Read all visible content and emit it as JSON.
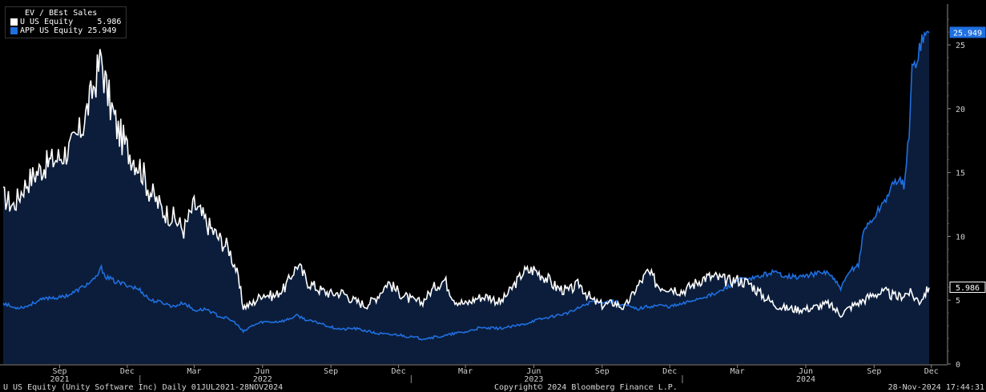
{
  "legend": {
    "title": "EV / BEst Sales",
    "items": [
      {
        "name": "U US Equity",
        "value": "5.986",
        "color": "#ffffff"
      },
      {
        "name": "APP US Equity",
        "value": "25.949",
        "color": "#1f6fe0"
      }
    ]
  },
  "footer": {
    "left": "U US Equity (Unity Software Inc)  Daily 01JUL2021-28NOV2024",
    "center": "Copyright© 2024 Bloomberg Finance L.P.",
    "right": "28-Nov-2024 17:44:31"
  },
  "colors": {
    "background": "#000000",
    "area_fill": "#0b1d3a",
    "u_line": "#ffffff",
    "app_line": "#1f6fe0",
    "axis": "#8a8a8a"
  },
  "chart_data": {
    "type": "line",
    "title": "EV / BEst Sales",
    "xlabel": "",
    "ylabel": "",
    "ylim": [
      0,
      28
    ],
    "yticks": [
      0,
      5,
      10,
      15,
      20,
      25
    ],
    "x_range": [
      "2021-07-01",
      "2024-11-28"
    ],
    "month_ticks": [
      {
        "label": "Sep",
        "date": "2021-09-15"
      },
      {
        "label": "Dec",
        "date": "2021-12-15"
      },
      {
        "label": "Mar",
        "date": "2022-03-15"
      },
      {
        "label": "Jun",
        "date": "2022-06-15"
      },
      {
        "label": "Sep",
        "date": "2022-09-15"
      },
      {
        "label": "Dec",
        "date": "2022-12-15"
      },
      {
        "label": "Mar",
        "date": "2023-03-15"
      },
      {
        "label": "Jun",
        "date": "2023-06-15"
      },
      {
        "label": "Sep",
        "date": "2023-09-15"
      },
      {
        "label": "Dec",
        "date": "2023-12-15"
      },
      {
        "label": "Mar",
        "date": "2024-03-15"
      },
      {
        "label": "Jun",
        "date": "2024-06-15"
      },
      {
        "label": "Sep",
        "date": "2024-09-15"
      },
      {
        "label": "Dec",
        "date": "2024-12-01"
      }
    ],
    "year_labels": [
      {
        "label": "2021",
        "date": "2021-09-15"
      },
      {
        "label": "2022",
        "date": "2022-06-15"
      },
      {
        "label": "2023",
        "date": "2023-06-15"
      },
      {
        "label": "2024",
        "date": "2024-06-15"
      }
    ],
    "year_dividers": [
      "2022-01-01",
      "2023-01-01",
      "2024-01-01"
    ],
    "last_value_labels": [
      {
        "series": "U US Equity",
        "value": "5.986",
        "y": 5.986
      },
      {
        "series": "APP US Equity",
        "value": "25.949",
        "y": 25.949
      }
    ],
    "series": [
      {
        "name": "U US Equity",
        "x": [
          "2021-07-01",
          "2021-07-15",
          "2021-08-01",
          "2021-08-15",
          "2021-09-01",
          "2021-09-15",
          "2021-10-01",
          "2021-10-15",
          "2021-11-01",
          "2021-11-10",
          "2021-11-17",
          "2021-12-01",
          "2021-12-15",
          "2022-01-01",
          "2022-01-15",
          "2022-02-01",
          "2022-02-15",
          "2022-03-01",
          "2022-03-15",
          "2022-04-01",
          "2022-04-15",
          "2022-05-01",
          "2022-05-10",
          "2022-05-20",
          "2022-06-01",
          "2022-06-15",
          "2022-07-01",
          "2022-07-15",
          "2022-08-01",
          "2022-08-15",
          "2022-09-01",
          "2022-09-15",
          "2022-10-01",
          "2022-10-15",
          "2022-11-01",
          "2022-11-15",
          "2022-12-01",
          "2022-12-15",
          "2023-01-01",
          "2023-01-15",
          "2023-02-01",
          "2023-02-15",
          "2023-03-01",
          "2023-03-15",
          "2023-04-01",
          "2023-04-15",
          "2023-05-01",
          "2023-05-15",
          "2023-06-01",
          "2023-06-15",
          "2023-07-01",
          "2023-07-15",
          "2023-08-01",
          "2023-08-15",
          "2023-09-01",
          "2023-09-15",
          "2023-10-01",
          "2023-10-15",
          "2023-11-01",
          "2023-11-15",
          "2023-12-01",
          "2023-12-15",
          "2024-01-01",
          "2024-01-15",
          "2024-02-01",
          "2024-02-15",
          "2024-03-01",
          "2024-03-15",
          "2024-04-01",
          "2024-04-15",
          "2024-05-01",
          "2024-05-15",
          "2024-06-01",
          "2024-06-15",
          "2024-07-01",
          "2024-07-15",
          "2024-08-01",
          "2024-08-15",
          "2024-09-01",
          "2024-09-15",
          "2024-10-01",
          "2024-10-15",
          "2024-11-01",
          "2024-11-15",
          "2024-11-28"
        ],
        "values": [
          13.1,
          12.4,
          14.2,
          15.0,
          15.8,
          16.2,
          17.0,
          18.5,
          22.0,
          24.0,
          21.5,
          18.5,
          16.8,
          15.5,
          13.5,
          12.0,
          11.5,
          10.5,
          12.5,
          11.0,
          10.0,
          9.0,
          7.5,
          4.5,
          4.7,
          5.5,
          5.3,
          6.0,
          7.8,
          6.4,
          5.8,
          5.5,
          5.6,
          5.0,
          4.6,
          5.2,
          6.4,
          5.6,
          5.0,
          4.8,
          6.0,
          6.6,
          5.0,
          4.7,
          5.2,
          5.3,
          4.8,
          5.8,
          7.2,
          7.4,
          6.8,
          6.0,
          5.7,
          6.3,
          5.0,
          4.6,
          4.8,
          4.4,
          6.0,
          7.2,
          6.1,
          6.0,
          5.7,
          6.2,
          6.8,
          6.8,
          6.5,
          6.6,
          6.3,
          5.5,
          4.8,
          4.4,
          4.3,
          4.3,
          4.5,
          4.7,
          3.9,
          4.5,
          5.0,
          5.5,
          5.6,
          5.2,
          5.6,
          4.9,
          5.986
        ]
      },
      {
        "name": "APP US Equity",
        "x": [
          "2021-07-01",
          "2021-07-15",
          "2021-08-01",
          "2021-08-15",
          "2021-09-01",
          "2021-09-15",
          "2021-10-01",
          "2021-10-15",
          "2021-11-01",
          "2021-11-10",
          "2021-11-17",
          "2021-12-01",
          "2021-12-15",
          "2022-01-01",
          "2022-01-15",
          "2022-02-01",
          "2022-02-15",
          "2022-03-01",
          "2022-03-15",
          "2022-04-01",
          "2022-04-15",
          "2022-05-01",
          "2022-05-10",
          "2022-05-20",
          "2022-06-01",
          "2022-06-15",
          "2022-07-01",
          "2022-07-15",
          "2022-08-01",
          "2022-08-15",
          "2022-09-01",
          "2022-09-15",
          "2022-10-01",
          "2022-10-15",
          "2022-11-01",
          "2022-11-15",
          "2022-12-01",
          "2022-12-15",
          "2023-01-01",
          "2023-01-15",
          "2023-02-01",
          "2023-02-15",
          "2023-03-01",
          "2023-03-15",
          "2023-04-01",
          "2023-04-15",
          "2023-05-01",
          "2023-05-15",
          "2023-06-01",
          "2023-06-15",
          "2023-07-01",
          "2023-07-15",
          "2023-08-01",
          "2023-08-15",
          "2023-09-01",
          "2023-09-15",
          "2023-10-01",
          "2023-10-15",
          "2023-11-01",
          "2023-11-15",
          "2023-12-01",
          "2023-12-15",
          "2024-01-01",
          "2024-01-15",
          "2024-02-01",
          "2024-02-15",
          "2024-03-01",
          "2024-03-15",
          "2024-04-01",
          "2024-04-15",
          "2024-05-01",
          "2024-05-15",
          "2024-06-01",
          "2024-06-15",
          "2024-07-01",
          "2024-07-15",
          "2024-08-01",
          "2024-08-15",
          "2024-08-25",
          "2024-09-01",
          "2024-09-15",
          "2024-10-01",
          "2024-10-15",
          "2024-10-25",
          "2024-11-01",
          "2024-11-05",
          "2024-11-10",
          "2024-11-15",
          "2024-11-20",
          "2024-11-28"
        ],
        "values": [
          4.8,
          4.4,
          4.5,
          4.9,
          5.2,
          5.2,
          5.5,
          6.0,
          6.6,
          7.5,
          6.8,
          6.4,
          6.2,
          5.8,
          5.0,
          4.8,
          4.5,
          4.8,
          4.2,
          4.3,
          3.8,
          3.5,
          3.2,
          2.5,
          3.0,
          3.3,
          3.3,
          3.4,
          3.8,
          3.4,
          3.2,
          2.9,
          2.7,
          2.8,
          2.6,
          2.4,
          2.3,
          2.3,
          2.1,
          2.0,
          2.1,
          2.2,
          2.4,
          2.5,
          2.8,
          2.8,
          2.8,
          2.9,
          3.1,
          3.4,
          3.6,
          3.8,
          4.0,
          4.4,
          4.9,
          4.9,
          4.9,
          4.6,
          4.3,
          4.5,
          4.6,
          4.5,
          4.7,
          5.0,
          5.3,
          5.5,
          6.0,
          6.6,
          6.6,
          6.9,
          7.2,
          7.0,
          6.8,
          6.9,
          7.1,
          7.2,
          5.9,
          7.4,
          7.8,
          10.5,
          11.5,
          13.0,
          14.5,
          14.0,
          18.0,
          23.0,
          23.5,
          25.0,
          25.5,
          25.949
        ]
      }
    ]
  }
}
